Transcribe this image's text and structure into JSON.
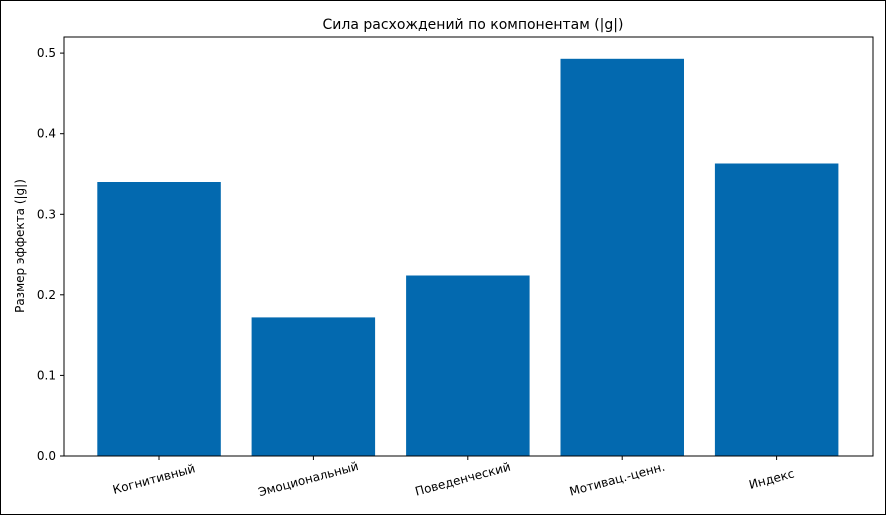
{
  "chart_data": {
    "type": "bar",
    "title": "Сила расхождений по компонентам (|g|)",
    "xlabel": "",
    "ylabel": "Размер эффекта (|g|)",
    "categories": [
      "Когнитивный",
      "Эмоциональный",
      "Поведенческий",
      "Мотивац.-ценн.",
      "Индекс"
    ],
    "values": [
      0.34,
      0.172,
      0.224,
      0.493,
      0.363
    ],
    "ylim": [
      0,
      0.52
    ],
    "yticks": [
      "0.0",
      "0.1",
      "0.2",
      "0.3",
      "0.4",
      "0.5"
    ],
    "grid": false,
    "bar_color": "#0369af"
  }
}
